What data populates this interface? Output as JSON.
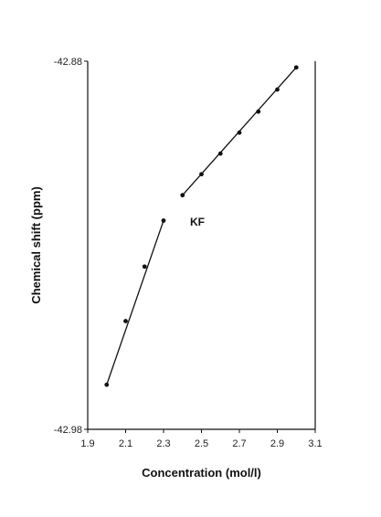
{
  "chart_data": {
    "type": "scatter",
    "title": "",
    "xlabel": "Concentration (mol/l)",
    "ylabel": "Chemical shift (ppm)",
    "xlim": [
      1.9,
      3.1
    ],
    "ylim": [
      -42.98,
      -42.88
    ],
    "x_ticks": [
      "1.9",
      "2.1",
      "2.3",
      "2.5",
      "2.7",
      "2.9",
      "3.1"
    ],
    "y_ticks": [
      "-42.88",
      "-42.98"
    ],
    "grid": false,
    "annotation": "KF",
    "series": [
      {
        "x": [
          2.0,
          2.1,
          2.2,
          2.3
        ],
        "y": [
          -42.9679,
          -42.9506,
          -42.9358,
          -42.9233
        ],
        "line": "linear-fit"
      },
      {
        "x": [
          2.4,
          2.5,
          2.6,
          2.7,
          2.8,
          2.9,
          3.0
        ],
        "y": [
          -42.9164,
          -42.9107,
          -42.9051,
          -42.8994,
          -42.8937,
          -42.8877,
          -42.8817
        ],
        "line": "linear-fit"
      }
    ]
  }
}
